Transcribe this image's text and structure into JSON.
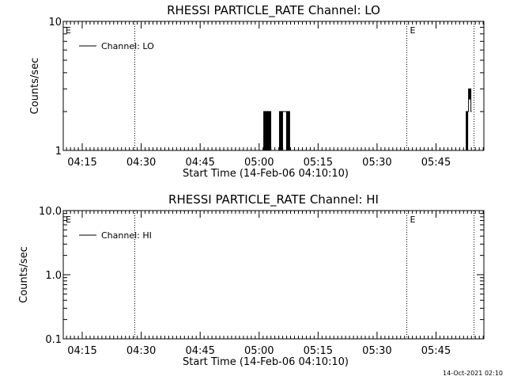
{
  "footer_timestamp": "14-Oct-2021 02:10",
  "chart_data": [
    {
      "type": "line",
      "title": "RHESSI PARTICLE_RATE Channel: LO",
      "xlabel": "Start Time (14-Feb-06 04:10:10)",
      "ylabel": "Counts/sec",
      "yscale": "log",
      "ylim": [
        1,
        10
      ],
      "y_ticks": [
        {
          "v": 1,
          "label": "1"
        },
        {
          "v": 10,
          "label": "10"
        }
      ],
      "x_unit": "minutes after 04:10:10",
      "xlim": [
        0,
        107
      ],
      "x_ticks": [
        {
          "v": 4.83,
          "label": "04:15"
        },
        {
          "v": 19.83,
          "label": "04:30"
        },
        {
          "v": 34.83,
          "label": "04:45"
        },
        {
          "v": 49.83,
          "label": "05:00"
        },
        {
          "v": 64.83,
          "label": "05:15"
        },
        {
          "v": 79.83,
          "label": "05:30"
        },
        {
          "v": 94.83,
          "label": "05:45"
        }
      ],
      "event_lines": [
        18.2,
        87.4,
        104.5
      ],
      "event_markers": [
        {
          "x": 0.4,
          "label": "E"
        },
        {
          "x": 88.0,
          "label": "E"
        }
      ],
      "legend": {
        "position": "top-left",
        "entries": [
          "Channel: LO"
        ]
      },
      "series": [
        {
          "name": "Channel: LO",
          "x": [
            51.0,
            51.0,
            51.2,
            51.2,
            51.4,
            51.4,
            51.6,
            51.6,
            51.8,
            51.8,
            52.0,
            52.0,
            52.2,
            52.2,
            52.4,
            52.4,
            52.6,
            52.6,
            52.8,
            52.8,
            55.0,
            55.0,
            55.2,
            55.2,
            55.4,
            55.4,
            55.6,
            55.6,
            55.8,
            55.8,
            56.8,
            56.8,
            57.0,
            57.0,
            57.2,
            57.2,
            57.4,
            57.4,
            57.6,
            57.6,
            102.5,
            102.5,
            102.7,
            102.7,
            102.9,
            102.9,
            103.1,
            103.1,
            103.3,
            103.3,
            103.5,
            103.5,
            103.7,
            103.7,
            103.9
          ],
          "y": [
            1,
            2,
            2,
            1,
            1,
            2,
            2,
            1,
            1,
            2,
            2,
            1,
            1,
            2,
            2,
            1,
            1,
            2,
            2,
            1,
            1,
            2,
            2,
            1,
            1,
            2,
            2,
            1,
            1,
            2,
            2,
            1,
            1,
            2,
            2,
            1,
            1,
            2,
            2,
            1,
            1,
            2,
            2,
            1,
            1,
            2,
            2,
            3,
            3,
            2.5,
            2.5,
            3,
            3,
            2,
            2
          ]
        }
      ]
    },
    {
      "type": "line",
      "title": "RHESSI PARTICLE_RATE Channel: HI",
      "xlabel": "Start Time (14-Feb-06 04:10:10)",
      "ylabel": "Counts/sec",
      "yscale": "log",
      "ylim": [
        0.1,
        10
      ],
      "y_ticks": [
        {
          "v": 0.1,
          "label": "0.1"
        },
        {
          "v": 1,
          "label": "1.0"
        },
        {
          "v": 10,
          "label": "10.0"
        }
      ],
      "x_unit": "minutes after 04:10:10",
      "xlim": [
        0,
        107
      ],
      "x_ticks": [
        {
          "v": 4.83,
          "label": "04:15"
        },
        {
          "v": 19.83,
          "label": "04:30"
        },
        {
          "v": 34.83,
          "label": "04:45"
        },
        {
          "v": 49.83,
          "label": "05:00"
        },
        {
          "v": 64.83,
          "label": "05:15"
        },
        {
          "v": 79.83,
          "label": "05:30"
        },
        {
          "v": 94.83,
          "label": "05:45"
        }
      ],
      "event_lines": [
        18.2,
        87.4,
        104.5
      ],
      "event_markers": [
        {
          "x": 0.4,
          "label": "E"
        },
        {
          "x": 88.0,
          "label": "E"
        }
      ],
      "legend": {
        "position": "top-left",
        "entries": [
          "Channel: HI"
        ]
      },
      "series": [
        {
          "name": "Channel: HI",
          "x": [],
          "y": []
        }
      ]
    }
  ]
}
